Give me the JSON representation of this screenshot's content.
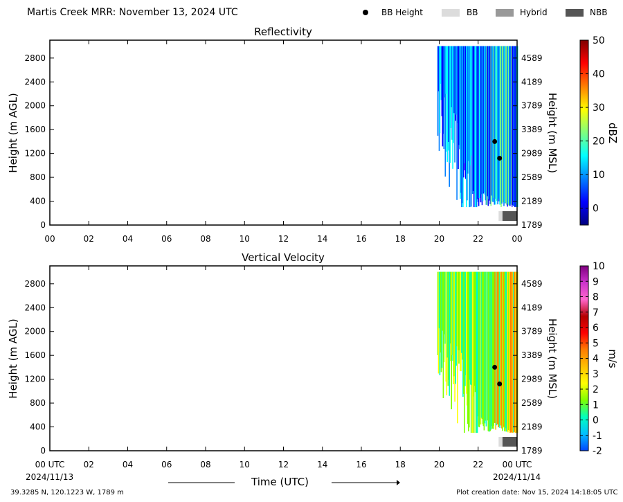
{
  "header": {
    "title": "Martis Creek MRR:  November 13, 2024 UTC",
    "legend": [
      {
        "label": "BB Height",
        "kind": "dot",
        "color": "#000000"
      },
      {
        "label": "BB",
        "kind": "bar",
        "color": "#dcdcdc"
      },
      {
        "label": "Hybrid",
        "kind": "bar",
        "color": "#999999"
      },
      {
        "label": "NBB",
        "kind": "bar",
        "color": "#555555"
      }
    ]
  },
  "footer": {
    "location": "39.3285 N, 120.1223 W, 1789 m",
    "created": "Plot creation date: Nov 15, 2024 14:18:05 UTC",
    "xtitle": "Time (UTC)",
    "start_date": "2024/11/13",
    "end_date": "2024/11/14"
  },
  "chart_data": [
    {
      "type": "heatmap",
      "title": "Reflectivity",
      "ylabel": "Height (m AGL)",
      "ylabel_right": "Height (m MSL)",
      "x_ticks": [
        "00",
        "02",
        "04",
        "06",
        "08",
        "10",
        "12",
        "14",
        "16",
        "18",
        "20",
        "22",
        "00"
      ],
      "xlim_hours": [
        0,
        24
      ],
      "ylim": [
        0,
        3100
      ],
      "y_ticks": [
        0,
        400,
        800,
        1200,
        1600,
        2000,
        2400,
        2800
      ],
      "y_ticks_right": [
        "1789",
        "2189",
        "2589",
        "2989",
        "3389",
        "3789",
        "4189",
        "4589"
      ],
      "colorbar": {
        "label": "dBZ",
        "range": [
          -5,
          50
        ],
        "ticks": [
          0,
          10,
          20,
          30,
          40,
          50
        ],
        "colors": [
          "#00007f",
          "#0000ff",
          "#007fff",
          "#00ffff",
          "#7fff7f",
          "#ffff00",
          "#ff7f00",
          "#ff0000",
          "#7f0000"
        ]
      },
      "echo": {
        "start_hour": 19.9,
        "end_hour": 24.0,
        "top_m": 3000,
        "base_m": 300
      },
      "bb_height_points": [
        {
          "hour": 22.85,
          "height_m": 1400
        },
        {
          "hour": 23.1,
          "height_m": 1120
        }
      ],
      "bb_type_strip": [
        {
          "start_hour": 23.05,
          "end_hour": 23.25,
          "type": "BB"
        },
        {
          "start_hour": 23.25,
          "end_hour": 24.0,
          "type": "NBB"
        }
      ]
    },
    {
      "type": "heatmap",
      "title": "Vertical Velocity",
      "ylabel": "Height (m AGL)",
      "ylabel_right": "Height (m MSL)",
      "x_ticks": [
        "00 UTC",
        "02",
        "04",
        "06",
        "08",
        "10",
        "12",
        "14",
        "16",
        "18",
        "20",
        "22",
        "00 UTC"
      ],
      "xlim_hours": [
        0,
        24
      ],
      "ylim": [
        0,
        3100
      ],
      "y_ticks": [
        0,
        400,
        800,
        1200,
        1600,
        2000,
        2400,
        2800
      ],
      "y_ticks_right": [
        "1789",
        "2189",
        "2589",
        "2989",
        "3389",
        "3789",
        "4189",
        "4589"
      ],
      "colorbar": {
        "label": "m/s",
        "range": [
          -2,
          10
        ],
        "ticks": [
          -2,
          -1,
          0,
          1,
          2,
          3,
          4,
          5,
          6,
          7,
          8,
          9,
          10
        ],
        "colors": [
          "#0044ff",
          "#00bfff",
          "#00ffbf",
          "#7fff00",
          "#ffff00",
          "#ffbf00",
          "#ff7f00",
          "#ff0000",
          "#b40000",
          "#ff66cc",
          "#cc33cc",
          "#800080"
        ]
      },
      "echo": {
        "start_hour": 19.9,
        "end_hour": 24.0,
        "top_m": 3000,
        "base_m": 300
      },
      "bb_height_points": [
        {
          "hour": 22.85,
          "height_m": 1400
        },
        {
          "hour": 23.1,
          "height_m": 1120
        }
      ],
      "bb_type_strip": [
        {
          "start_hour": 23.05,
          "end_hour": 23.25,
          "type": "BB"
        },
        {
          "start_hour": 23.25,
          "end_hour": 24.0,
          "type": "NBB"
        }
      ]
    }
  ]
}
